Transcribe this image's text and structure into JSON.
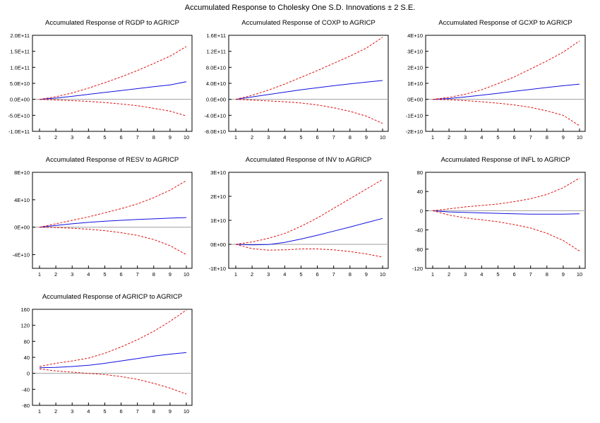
{
  "figure": {
    "title": "Accumulated Response to Cholesky One S.D. Innovations ± 2 S.E."
  },
  "colors": {
    "response": "#1010e0",
    "bands": "#e01010",
    "zero_line": "#a0a0a0",
    "frame": "#000000"
  },
  "chart_data": [
    {
      "type": "line",
      "title": "Accumulated Response of RGDP to AGRICP",
      "x": [
        1,
        2,
        3,
        4,
        5,
        6,
        7,
        8,
        9,
        10
      ],
      "ylim": [
        -100000000000.0,
        200000000000.0
      ],
      "yticks": [
        -100000000000.0,
        -50000000000.0,
        0,
        50000000000.0,
        100000000000.0,
        150000000000.0,
        200000000000.0
      ],
      "ytick_labels": [
        "-1.0E+11",
        "-5.0E+10",
        "0.0E+00",
        "5.0E+10",
        "1.0E+11",
        "1.5E+11",
        "2.0E+11"
      ],
      "series": [
        {
          "role": "response",
          "values": [
            0,
            4000000000.0,
            9500000000.0,
            15500000000.0,
            21500000000.0,
            27500000000.0,
            33500000000.0,
            39500000000.0,
            45000000000.0,
            55000000000.0
          ]
        },
        {
          "role": "upper",
          "values": [
            0,
            8000000000.0,
            20000000000.0,
            35000000000.0,
            52000000000.0,
            70000000000.0,
            90000000000.0,
            112000000000.0,
            135000000000.0,
            165000000000.0
          ]
        },
        {
          "role": "lower",
          "values": [
            0,
            -2000000000.0,
            -4000000000.0,
            -6500000000.0,
            -10000000000.0,
            -14500000000.0,
            -20000000000.0,
            -28000000000.0,
            -37000000000.0,
            -52000000000.0
          ]
        }
      ]
    },
    {
      "type": "line",
      "title": "Accumulated Response of COXP to AGRICP",
      "x": [
        1,
        2,
        3,
        4,
        5,
        6,
        7,
        8,
        9,
        10
      ],
      "ylim": [
        -80000000000.0,
        160000000000.0
      ],
      "yticks": [
        -80000000000.0,
        -40000000000.0,
        0,
        40000000000.0,
        80000000000.0,
        120000000000.0,
        160000000000.0
      ],
      "ytick_labels": [
        "-8.0E+10",
        "-4.0E+10",
        "0.0E+00",
        "4.0E+10",
        "8.0E+10",
        "1.2E+11",
        "1.6E+11"
      ],
      "series": [
        {
          "role": "response",
          "values": [
            0,
            6000000000.0,
            12000000000.0,
            18000000000.0,
            24000000000.0,
            29000000000.0,
            34000000000.0,
            38500000000.0,
            43000000000.0,
            47000000000.0
          ]
        },
        {
          "role": "upper",
          "values": [
            0,
            10000000000.0,
            23000000000.0,
            38000000000.0,
            55000000000.0,
            72000000000.0,
            90000000000.0,
            108000000000.0,
            128000000000.0,
            155000000000.0
          ]
        },
        {
          "role": "lower",
          "values": [
            0,
            -2000000000.0,
            -4000000000.0,
            -6000000000.0,
            -9000000000.0,
            -14000000000.0,
            -21000000000.0,
            -30000000000.0,
            -42000000000.0,
            -60000000000.0
          ]
        }
      ]
    },
    {
      "type": "line",
      "title": "Accumulated Response of GCXP to AGRICP",
      "x": [
        1,
        2,
        3,
        4,
        5,
        6,
        7,
        8,
        9,
        10
      ],
      "ylim": [
        -20000000000.0,
        40000000000.0
      ],
      "yticks": [
        -20000000000.0,
        -10000000000.0,
        0,
        10000000000.0,
        20000000000.0,
        30000000000.0,
        40000000000.0
      ],
      "ytick_labels": [
        "-2E+10",
        "-1E+10",
        "0E+00",
        "1E+10",
        "2E+10",
        "3E+10",
        "4E+10"
      ],
      "series": [
        {
          "role": "response",
          "values": [
            0,
            500000000.0,
            1500000000.0,
            2600000000.0,
            3800000000.0,
            5000000000.0,
            6200000000.0,
            7400000000.0,
            8500000000.0,
            9500000000.0
          ]
        },
        {
          "role": "upper",
          "values": [
            0,
            1200000000.0,
            3200000000.0,
            6000000000.0,
            9800000000.0,
            14000000000.0,
            19000000000.0,
            24000000000.0,
            29500000000.0,
            36500000000.0
          ]
        },
        {
          "role": "lower",
          "values": [
            0,
            -300000000.0,
            -800000000.0,
            -1500000000.0,
            -2400000000.0,
            -3500000000.0,
            -5000000000.0,
            -7200000000.0,
            -10000000000.0,
            -16500000000.0
          ]
        }
      ]
    },
    {
      "type": "line",
      "title": "Accumulated Response of RESV to AGRICP",
      "x": [
        1,
        2,
        3,
        4,
        5,
        6,
        7,
        8,
        9,
        10
      ],
      "ylim": [
        -60000000000.0,
        80000000000.0
      ],
      "yticks": [
        -40000000000.0,
        0,
        40000000000.0,
        80000000000.0
      ],
      "ytick_labels": [
        "-4E+10",
        "0E+00",
        "4E+10",
        "8E+10"
      ],
      "series": [
        {
          "role": "response",
          "values": [
            0,
            2500000000.0,
            5000000000.0,
            7000000000.0,
            8700000000.0,
            10000000000.0,
            11200000000.0,
            12200000000.0,
            13200000000.0,
            14000000000.0
          ]
        },
        {
          "role": "upper",
          "values": [
            0,
            5000000000.0,
            10000000000.0,
            15000000000.0,
            21000000000.0,
            27000000000.0,
            34000000000.0,
            43000000000.0,
            54000000000.0,
            68000000000.0
          ]
        },
        {
          "role": "lower",
          "values": [
            0,
            -500000000.0,
            -1500000000.0,
            -3000000000.0,
            -5000000000.0,
            -8000000000.0,
            -12000000000.0,
            -18000000000.0,
            -27000000000.0,
            -40000000000.0
          ]
        }
      ]
    },
    {
      "type": "line",
      "title": "Accumulated Response of INV to AGRICP",
      "x": [
        1,
        2,
        3,
        4,
        5,
        6,
        7,
        8,
        9,
        10
      ],
      "ylim": [
        -10000000000.0,
        30000000000.0
      ],
      "yticks": [
        -10000000000.0,
        0,
        10000000000.0,
        20000000000.0,
        30000000000.0
      ],
      "ytick_labels": [
        "-1E+10",
        "0E+00",
        "1E+10",
        "2E+10",
        "3E+10"
      ],
      "series": [
        {
          "role": "response",
          "values": [
            0,
            -200000000.0,
            -100000000.0,
            800000000.0,
            2200000000.0,
            3800000000.0,
            5500000000.0,
            7200000000.0,
            9000000000.0,
            10800000000.0
          ]
        },
        {
          "role": "upper",
          "values": [
            0,
            1000000000.0,
            2500000000.0,
            4500000000.0,
            7500000000.0,
            11000000000.0,
            15000000000.0,
            19000000000.0,
            23000000000.0,
            27000000000.0
          ]
        },
        {
          "role": "lower",
          "values": [
            0,
            -1800000000.0,
            -2400000000.0,
            -2300000000.0,
            -1900000000.0,
            -1900000000.0,
            -2300000000.0,
            -3000000000.0,
            -4000000000.0,
            -5300000000.0
          ]
        }
      ]
    },
    {
      "type": "line",
      "title": "Accumulated Response of INFL to AGRICP",
      "x": [
        1,
        2,
        3,
        4,
        5,
        6,
        7,
        8,
        9,
        10
      ],
      "ylim": [
        -120,
        80
      ],
      "yticks": [
        -120,
        -80,
        -40,
        0,
        40,
        80
      ],
      "ytick_labels": [
        "-120",
        "-80",
        "-40",
        "0",
        "40",
        "80"
      ],
      "series": [
        {
          "role": "response",
          "values": [
            0,
            -2.5,
            -3.5,
            -4.5,
            -5.5,
            -6.5,
            -7,
            -7,
            -7,
            -6.5
          ]
        },
        {
          "role": "upper",
          "values": [
            0,
            4,
            8,
            11,
            14,
            19,
            25,
            34,
            48,
            68
          ]
        },
        {
          "role": "lower",
          "values": [
            0,
            -9,
            -15,
            -19,
            -23,
            -29,
            -36,
            -47,
            -62,
            -84
          ]
        }
      ]
    },
    {
      "type": "line",
      "title": "Accumulated Response of AGRICP to AGRICP",
      "x": [
        1,
        2,
        3,
        4,
        5,
        6,
        7,
        8,
        9,
        10
      ],
      "ylim": [
        -80,
        160
      ],
      "yticks": [
        -80,
        -40,
        0,
        40,
        80,
        120,
        160
      ],
      "ytick_labels": [
        "-80",
        "-40",
        "0",
        "40",
        "80",
        "120",
        "160"
      ],
      "xtick_labels": [
        "1",
        "2",
        "3",
        "4",
        "5",
        "6",
        "7",
        "8",
        "9",
        "10"
      ],
      "series": [
        {
          "role": "response",
          "values": [
            14,
            15,
            17,
            20,
            25,
            31,
            37,
            43,
            48,
            52
          ]
        },
        {
          "role": "upper",
          "values": [
            17,
            25,
            31,
            38,
            50,
            66,
            84,
            105,
            130,
            158
          ]
        },
        {
          "role": "lower",
          "values": [
            11,
            6,
            3,
            0,
            -3,
            -8,
            -15,
            -25,
            -37,
            -52
          ]
        }
      ]
    }
  ]
}
